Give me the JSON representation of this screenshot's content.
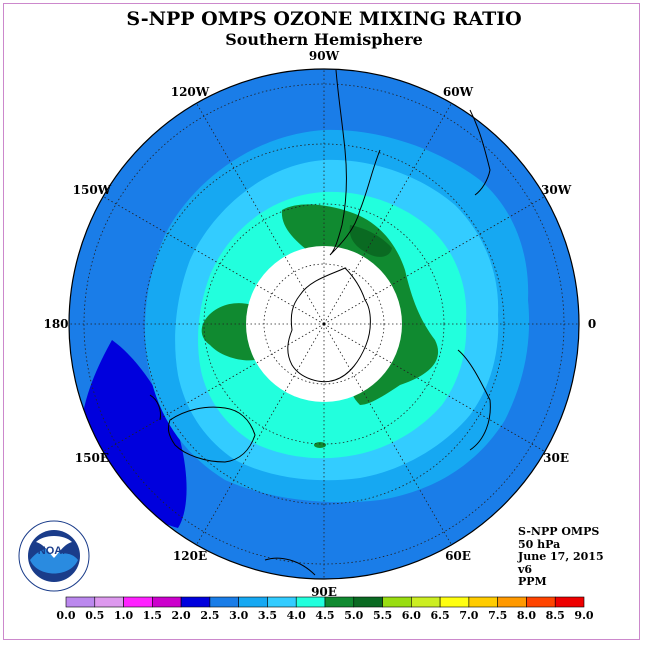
{
  "title": "S-NPP OMPS OZONE MIXING RATIO",
  "subtitle": "Southern Hemisphere",
  "info": {
    "instrument": "S-NPP OMPS",
    "pressure": "50 hPa",
    "date": "June 17, 2015",
    "version": "v6",
    "units": "PPM"
  },
  "logo": {
    "text": "NOAA",
    "icon": "noaa-logo"
  },
  "longitude_labels": [
    "90W",
    "60W",
    "30W",
    "0",
    "30E",
    "60E",
    "90E",
    "120E",
    "150E",
    "180",
    "150W",
    "120W"
  ],
  "colorbar": {
    "ticks": [
      "0.0",
      "0.5",
      "1.0",
      "1.5",
      "2.0",
      "2.5",
      "3.0",
      "3.5",
      "4.0",
      "4.5",
      "5.0",
      "5.5",
      "6.0",
      "6.5",
      "7.0",
      "7.5",
      "8.0",
      "8.5",
      "9.0"
    ],
    "colors": [
      "#bb88ee",
      "#dd99ee",
      "#ff22ff",
      "#cc00cc",
      "#0000dd",
      "#1a7de8",
      "#16a8f2",
      "#33ccff",
      "#22ffdd",
      "#108a30",
      "#0a6a22",
      "#99dd11",
      "#ccee22",
      "#ffff11",
      "#ffcc00",
      "#ff9900",
      "#ff4400",
      "#ee0000",
      "#886644"
    ]
  },
  "map_colors": {
    "ocean_outer": "#1a7de8",
    "band_3_0": "#16a8f2",
    "band_3_5": "#33ccff",
    "band_4_0": "#22ffdd",
    "band_4_5": "#108a30",
    "band_5_0": "#0a6a22",
    "low_2_0": "#0000dd",
    "no_data": "#ffffff"
  }
}
